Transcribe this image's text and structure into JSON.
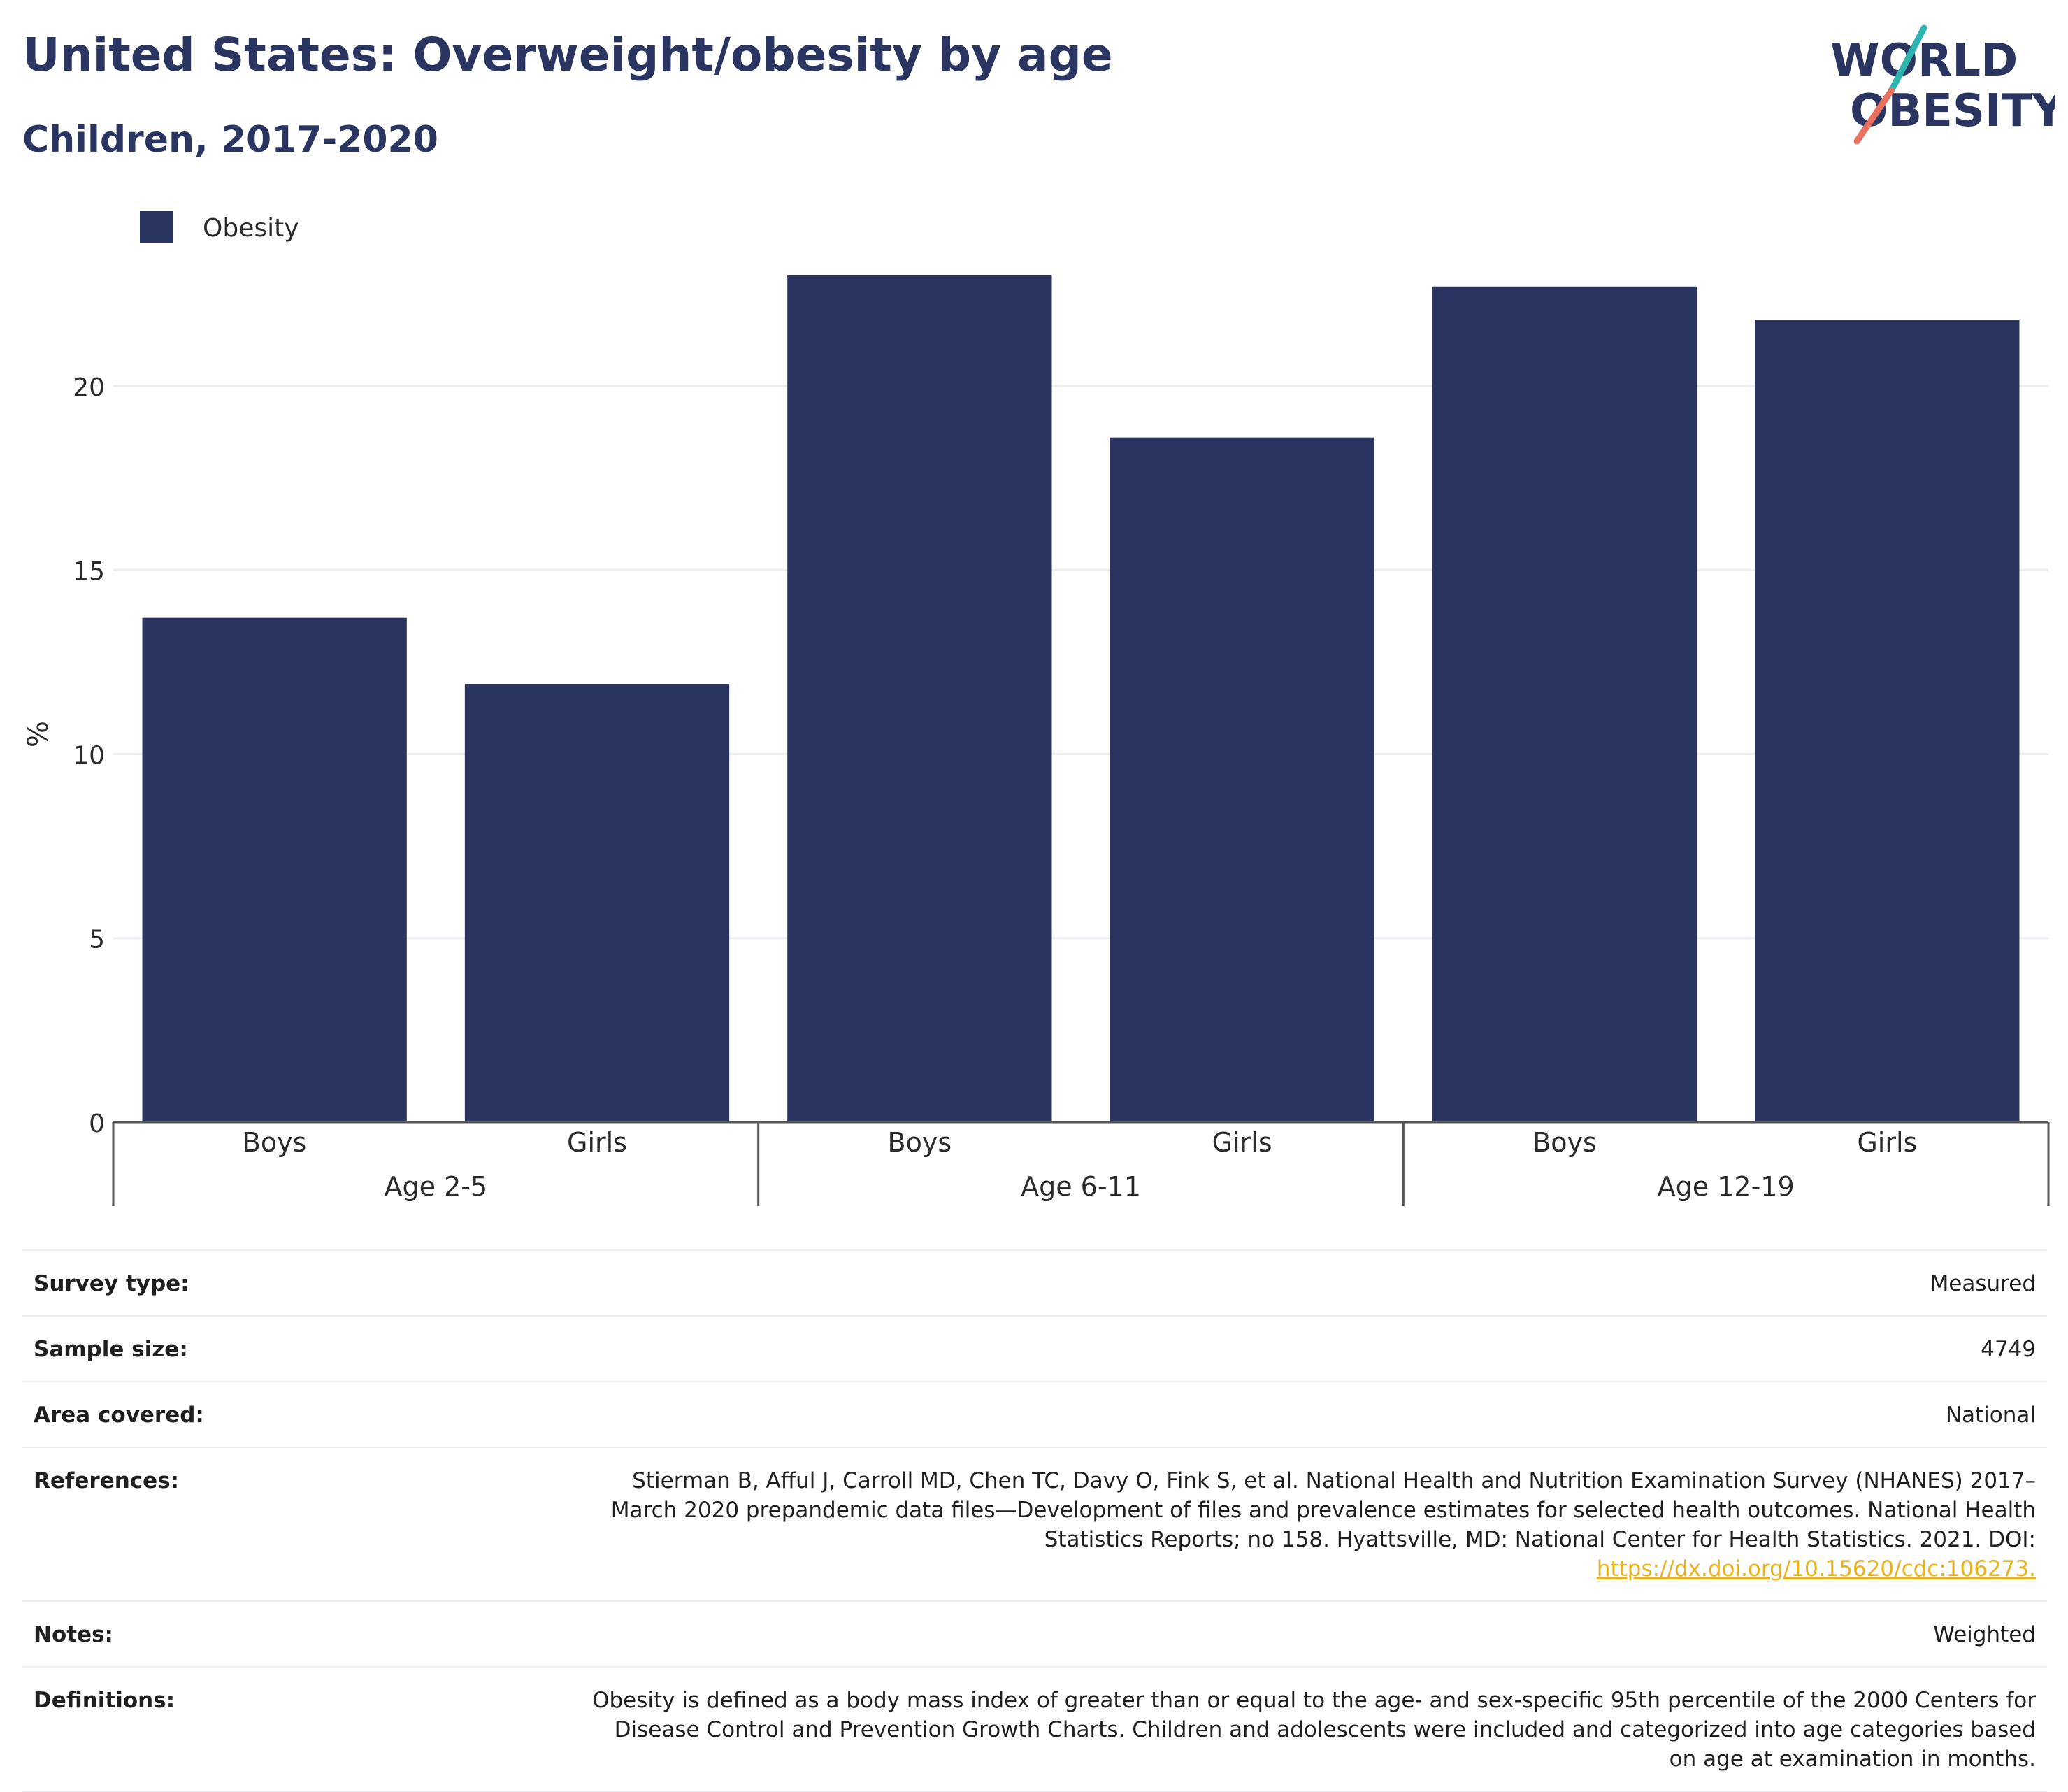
{
  "header": {
    "title": "United States: Overweight/obesity by age",
    "subtitle": "Children, 2017-2020"
  },
  "logo": {
    "line1": "WORLD",
    "line2": "OBESITY",
    "accent_teal": "#2fb5b0",
    "accent_coral": "#e8705f"
  },
  "chart_data": {
    "type": "bar",
    "groups": [
      {
        "label": "Age 2-5",
        "categories": [
          "Boys",
          "Girls"
        ]
      },
      {
        "label": "Age 6-11",
        "categories": [
          "Boys",
          "Girls"
        ]
      },
      {
        "label": "Age 12-19",
        "categories": [
          "Boys",
          "Girls"
        ]
      }
    ],
    "series": [
      {
        "name": "Obesity",
        "color": "#2a3661",
        "values": [
          13.7,
          11.9,
          23.0,
          18.6,
          22.7,
          21.8
        ]
      }
    ],
    "ylabel": "%",
    "ylim": [
      0,
      24.5
    ],
    "yticks": [
      0,
      5,
      10,
      15,
      20
    ],
    "grid": true,
    "legend_position": "top-left"
  },
  "info": [
    {
      "label": "Survey type:",
      "value": "Measured"
    },
    {
      "label": "Sample size:",
      "value": "4749"
    },
    {
      "label": "Area covered:",
      "value": "National"
    },
    {
      "label": "References:",
      "value": "Stierman B, Afful J, Carroll MD, Chen TC, Davy O, Fink S, et al. National Health and Nutrition Examination Survey (NHANES) 2017–March 2020 prepandemic data files—Development of files and prevalence estimates for selected health outcomes. National Health Statistics Reports; no 158. Hyattsville, MD: National Center for Health Statistics. 2021. DOI:",
      "link": "https://dx.doi.org/10.15620/cdc:106273."
    },
    {
      "label": "Notes:",
      "value": "Weighted"
    },
    {
      "label": "Definitions:",
      "value": "Obesity is defined as a body mass index of greater than or equal to the age- and sex-specific 95th percentile of the 2000 Centers for Disease Control and Prevention Growth Charts. Children and adolescents were included and categorized into age categories based on age at examination in months."
    }
  ]
}
